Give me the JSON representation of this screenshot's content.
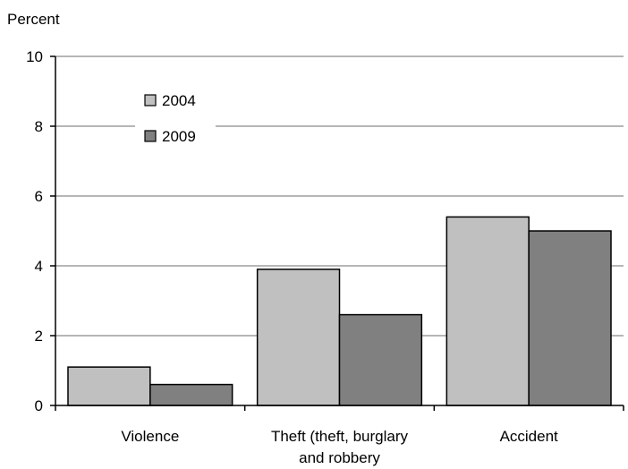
{
  "chart_data": {
    "type": "bar",
    "ylabel": "Percent",
    "ylim": [
      0,
      10
    ],
    "yticks": [
      0,
      2,
      4,
      6,
      8,
      10
    ],
    "grid": true,
    "legend_placement": "top-left",
    "categories": [
      [
        "Violence"
      ],
      [
        "Theft (theft, burglary",
        "and robbery"
      ],
      [
        "Accident"
      ]
    ],
    "series": [
      {
        "name": "2004",
        "color": "#c0c0c0",
        "values": [
          1.1,
          3.9,
          5.4
        ]
      },
      {
        "name": "2009",
        "color": "#808080",
        "values": [
          0.6,
          2.6,
          5.0
        ]
      }
    ]
  }
}
